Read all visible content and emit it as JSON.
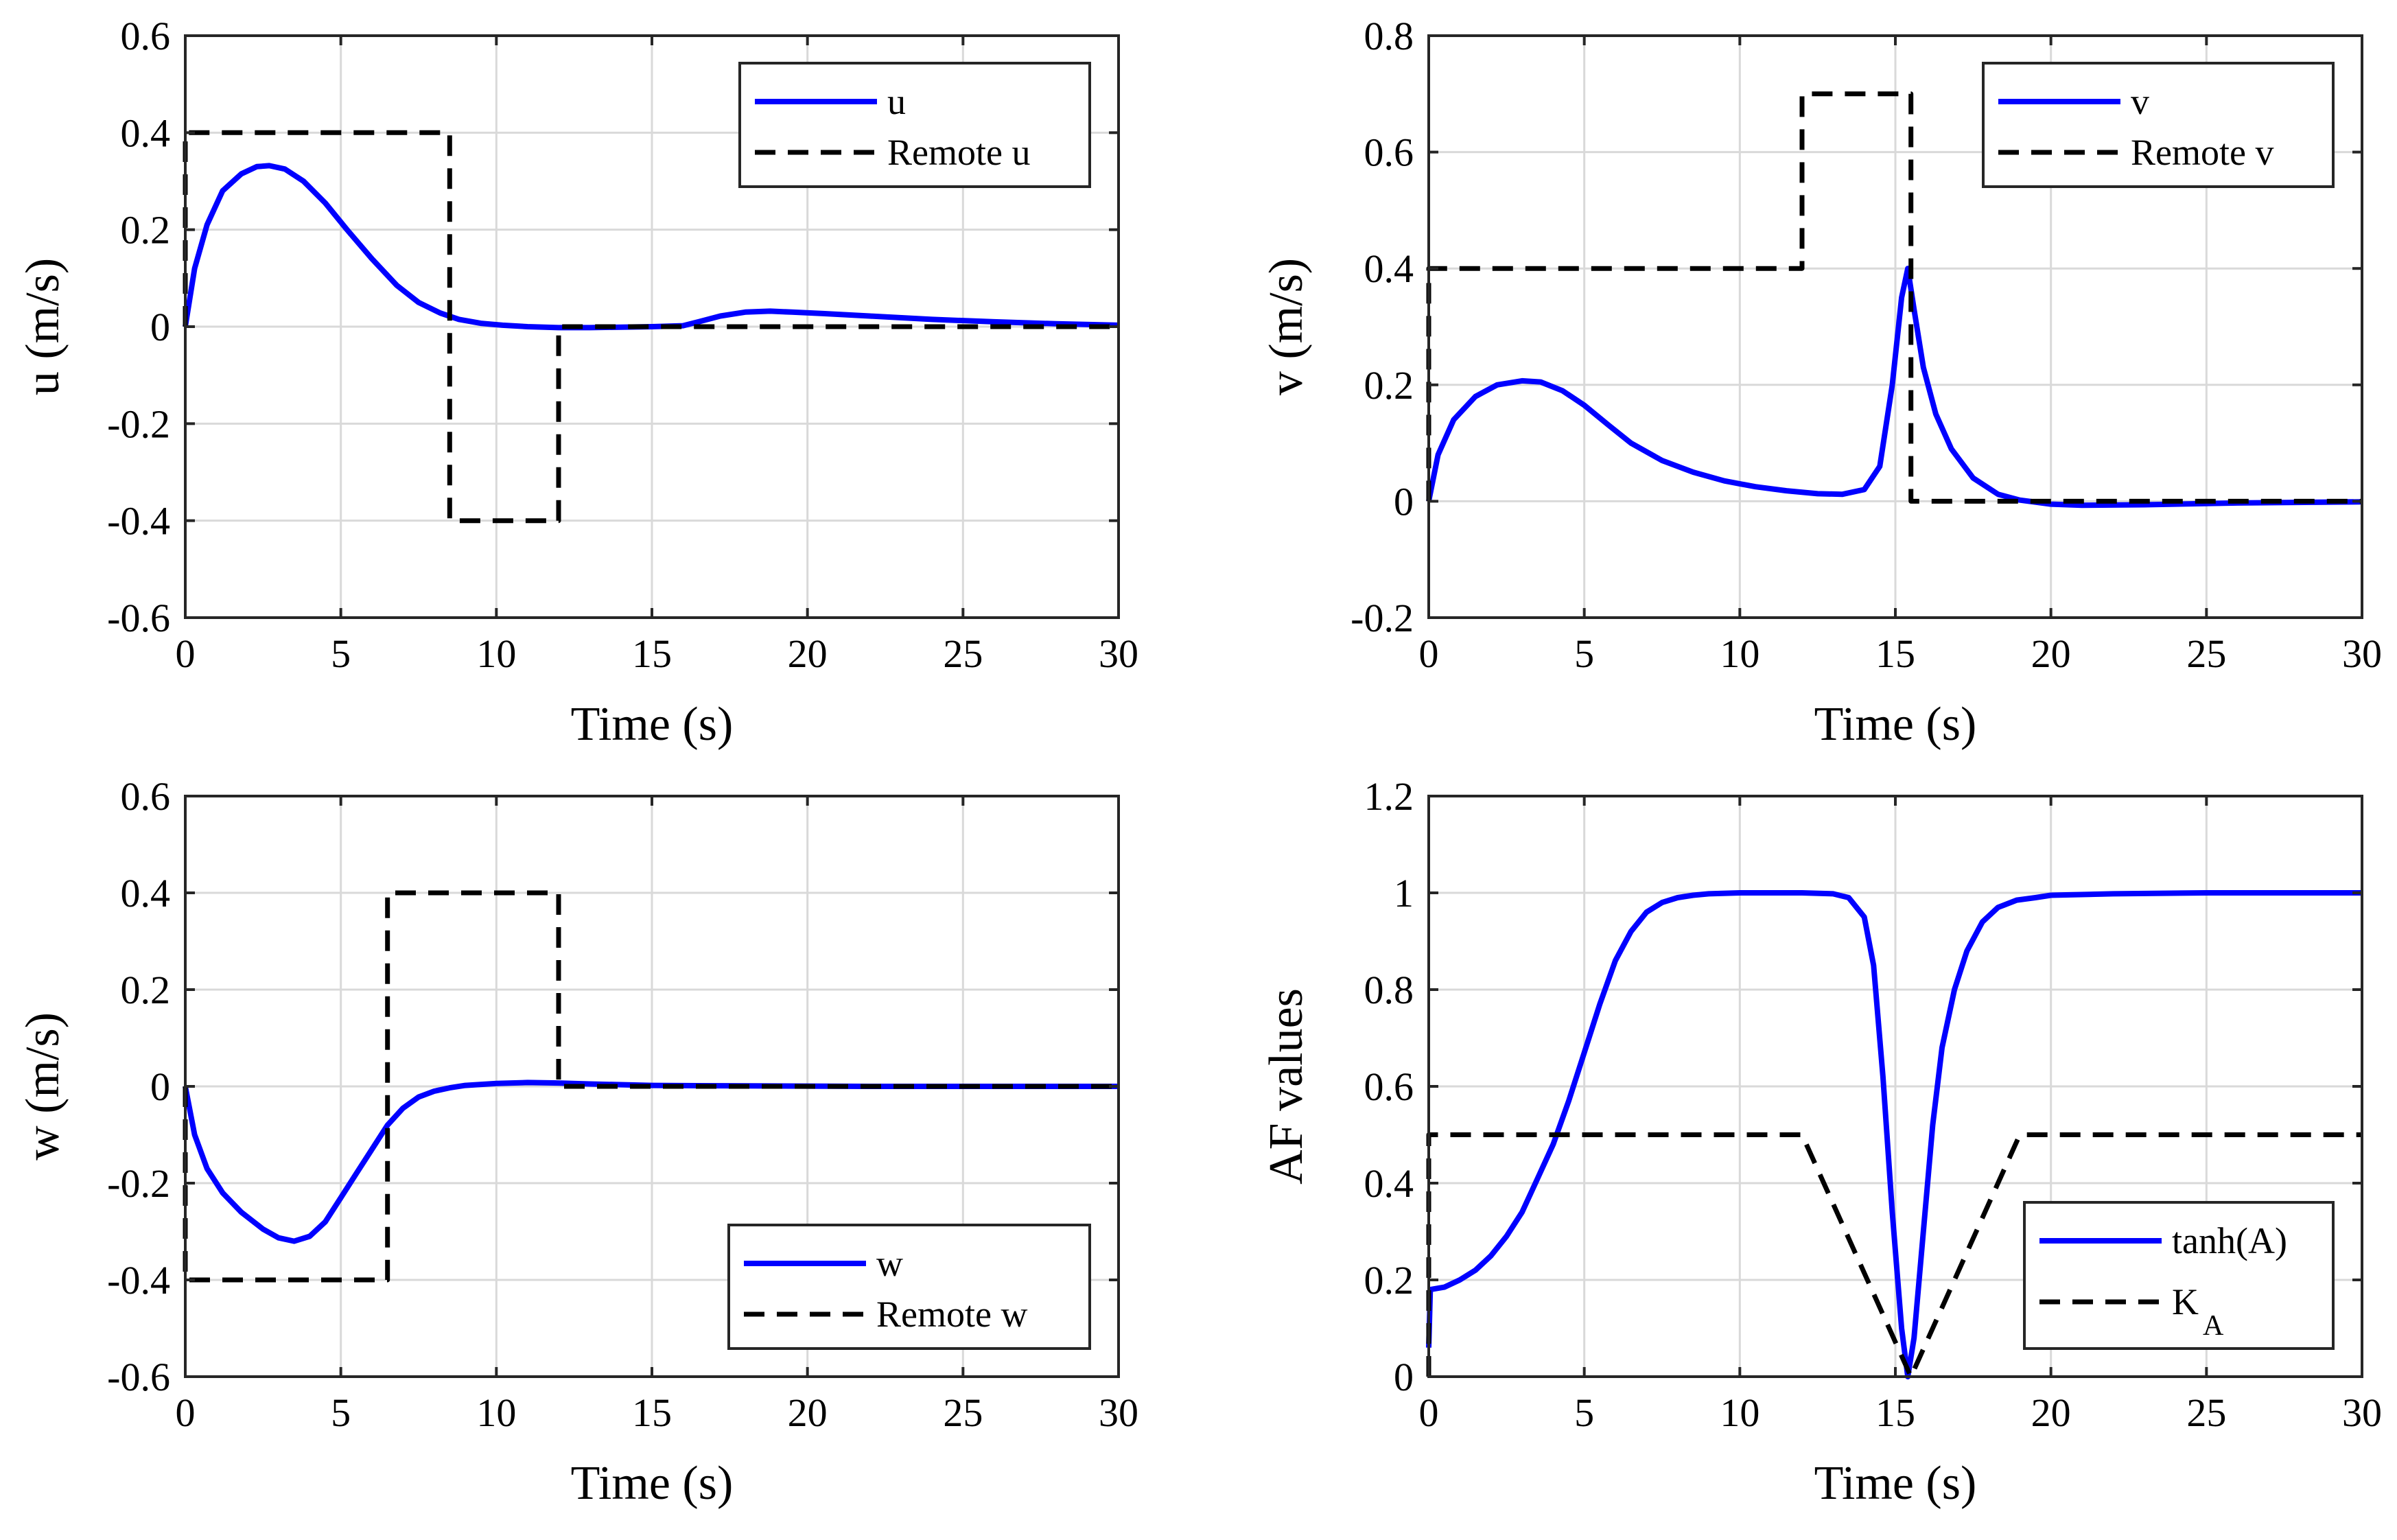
{
  "chart_data": [
    {
      "type": "line",
      "xlabel": "Time (s)",
      "ylabel": "u (m/s)",
      "xlim": [
        0,
        30
      ],
      "ylim": [
        -0.6,
        0.6
      ],
      "xticks": [
        0,
        5,
        10,
        15,
        20,
        25,
        30
      ],
      "xtick_labels": [
        "0",
        "5",
        "10",
        "15",
        "20",
        "25",
        "30"
      ],
      "yticks": [
        -0.6,
        -0.4,
        -0.2,
        0,
        0.2,
        0.4,
        0.6
      ],
      "ytick_labels": [
        "-0.6",
        "-0.4",
        "-0.2",
        "0",
        "0.2",
        "0.4",
        "0.6"
      ],
      "grid": true,
      "legend_position": "top-right",
      "series": [
        {
          "name": "u",
          "style": "solid",
          "color": "#0000ff",
          "x": [
            0,
            0.3,
            0.7,
            1.2,
            1.8,
            2.3,
            2.7,
            3.2,
            3.8,
            4.5,
            5.2,
            6,
            6.8,
            7.5,
            8.2,
            8.8,
            9.5,
            10.2,
            11,
            12,
            13,
            14,
            15,
            16,
            16.5,
            17.2,
            18,
            18.8,
            19.5,
            20.5,
            22,
            24,
            26,
            28,
            30
          ],
          "values": [
            0,
            0.12,
            0.21,
            0.28,
            0.315,
            0.33,
            0.332,
            0.325,
            0.3,
            0.255,
            0.2,
            0.14,
            0.085,
            0.05,
            0.028,
            0.015,
            0.007,
            0.003,
            0,
            -0.002,
            -0.002,
            -0.001,
            0,
            0.002,
            0.01,
            0.022,
            0.03,
            0.032,
            0.03,
            0.027,
            0.022,
            0.015,
            0.01,
            0.006,
            0.003
          ]
        },
        {
          "name": "Remote u",
          "style": "dashed",
          "color": "#000000",
          "x": [
            0,
            0,
            8.5,
            8.5,
            12,
            12,
            30
          ],
          "values": [
            0,
            0.4,
            0.4,
            -0.4,
            -0.4,
            0,
            0
          ]
        }
      ]
    },
    {
      "type": "line",
      "xlabel": "Time (s)",
      "ylabel": "v (m/s)",
      "xlim": [
        0,
        30
      ],
      "ylim": [
        -0.2,
        0.8
      ],
      "xticks": [
        0,
        5,
        10,
        15,
        20,
        25,
        30
      ],
      "xtick_labels": [
        "0",
        "5",
        "10",
        "15",
        "20",
        "25",
        "30"
      ],
      "yticks": [
        -0.2,
        0,
        0.2,
        0.4,
        0.6,
        0.8
      ],
      "ytick_labels": [
        "-0.2",
        "0",
        "0.2",
        "0.4",
        "0.6",
        "0.8"
      ],
      "grid": true,
      "legend_position": "top-right",
      "series": [
        {
          "name": "v",
          "style": "solid",
          "color": "#0000ff",
          "x": [
            0,
            0.3,
            0.8,
            1.5,
            2.2,
            3,
            3.6,
            4.3,
            5,
            5.8,
            6.5,
            7.5,
            8.5,
            9.5,
            10.5,
            11.5,
            12.5,
            13.3,
            14,
            14.5,
            14.9,
            15.2,
            15.4,
            15.6,
            15.9,
            16.3,
            16.8,
            17.5,
            18.3,
            19,
            20,
            21,
            23,
            26,
            30
          ],
          "values": [
            0,
            0.08,
            0.14,
            0.18,
            0.2,
            0.207,
            0.205,
            0.19,
            0.165,
            0.13,
            0.1,
            0.07,
            0.05,
            0.035,
            0.025,
            0.018,
            0.013,
            0.012,
            0.02,
            0.06,
            0.2,
            0.35,
            0.4,
            0.33,
            0.23,
            0.15,
            0.09,
            0.04,
            0.012,
            0.002,
            -0.005,
            -0.007,
            -0.006,
            -0.003,
            -0.001
          ]
        },
        {
          "name": "Remote v",
          "style": "dashed",
          "color": "#000000",
          "x": [
            0,
            0,
            12,
            12,
            15.5,
            15.5,
            30
          ],
          "values": [
            0,
            0.4,
            0.4,
            0.7,
            0.7,
            0,
            0
          ]
        }
      ]
    },
    {
      "type": "line",
      "xlabel": "Time (s)",
      "ylabel": "w (m/s)",
      "xlim": [
        0,
        30
      ],
      "ylim": [
        -0.6,
        0.6
      ],
      "xticks": [
        0,
        5,
        10,
        15,
        20,
        25,
        30
      ],
      "xtick_labels": [
        "0",
        "5",
        "10",
        "15",
        "20",
        "25",
        "30"
      ],
      "yticks": [
        -0.6,
        -0.4,
        -0.2,
        0,
        0.2,
        0.4,
        0.6
      ],
      "ytick_labels": [
        "-0.6",
        "-0.4",
        "-0.2",
        "0",
        "0.2",
        "0.4",
        "0.6"
      ],
      "grid": true,
      "legend_position": "bottom-right",
      "series": [
        {
          "name": "w",
          "style": "solid",
          "color": "#0000ff",
          "x": [
            0,
            0.3,
            0.7,
            1.2,
            1.8,
            2.5,
            3,
            3.5,
            4,
            4.5,
            5,
            5.5,
            6,
            6.5,
            7,
            7.5,
            8,
            8.5,
            9,
            10,
            11,
            12,
            13,
            15,
            18,
            22,
            26,
            30
          ],
          "values": [
            0,
            -0.1,
            -0.17,
            -0.22,
            -0.26,
            -0.295,
            -0.313,
            -0.32,
            -0.31,
            -0.28,
            -0.23,
            -0.18,
            -0.13,
            -0.08,
            -0.045,
            -0.022,
            -0.01,
            -0.003,
            0.002,
            0.006,
            0.008,
            0.007,
            0.005,
            0.002,
            0.001,
            0,
            0,
            0
          ]
        },
        {
          "name": "Remote w",
          "style": "dashed",
          "color": "#000000",
          "x": [
            0,
            0,
            6.5,
            6.5,
            12,
            12,
            30
          ],
          "values": [
            0,
            -0.4,
            -0.4,
            0.4,
            0.4,
            0,
            0
          ]
        }
      ]
    },
    {
      "type": "line",
      "xlabel": "Time (s)",
      "ylabel": "AF values",
      "xlim": [
        0,
        30
      ],
      "ylim": [
        0,
        1.2
      ],
      "xticks": [
        0,
        5,
        10,
        15,
        20,
        25,
        30
      ],
      "xtick_labels": [
        "0",
        "5",
        "10",
        "15",
        "20",
        "25",
        "30"
      ],
      "yticks": [
        0,
        0.2,
        0.4,
        0.6,
        0.8,
        1,
        1.2
      ],
      "ytick_labels": [
        "0",
        "0.2",
        "0.4",
        "0.6",
        "0.8",
        "1",
        "1.2"
      ],
      "grid": true,
      "legend_position": "bottom-right",
      "series": [
        {
          "name": "tanh(A)",
          "style": "solid",
          "color": "#0000ff",
          "x": [
            0,
            0.05,
            0.5,
            1,
            1.5,
            2,
            2.5,
            3,
            3.5,
            4,
            4.5,
            5,
            5.5,
            6,
            6.5,
            7,
            7.5,
            8,
            8.5,
            9,
            10,
            11,
            12,
            13,
            13.5,
            14,
            14.3,
            14.6,
            14.9,
            15.2,
            15.4,
            15.6,
            15.9,
            16.2,
            16.5,
            16.9,
            17.3,
            17.8,
            18.3,
            18.9,
            19.5,
            20,
            22,
            25,
            30
          ],
          "values": [
            0.06,
            0.18,
            0.185,
            0.2,
            0.22,
            0.25,
            0.29,
            0.34,
            0.41,
            0.48,
            0.57,
            0.67,
            0.77,
            0.86,
            0.92,
            0.96,
            0.98,
            0.99,
            0.995,
            0.998,
            1,
            1,
            1,
            0.998,
            0.99,
            0.95,
            0.85,
            0.62,
            0.34,
            0.1,
            0.0,
            0.08,
            0.3,
            0.52,
            0.68,
            0.8,
            0.88,
            0.94,
            0.97,
            0.985,
            0.99,
            0.995,
            0.998,
            1,
            1
          ]
        },
        {
          "name": "K_A",
          "style": "dashed",
          "color": "#000000",
          "x": [
            0,
            0,
            12,
            15.5,
            19,
            30
          ],
          "values": [
            0,
            0.5,
            0.5,
            0,
            0.5,
            0.5
          ]
        }
      ]
    }
  ],
  "legends": [
    {
      "labels": [
        "u",
        "Remote u"
      ]
    },
    {
      "labels": [
        "v",
        "Remote v"
      ]
    },
    {
      "labels": [
        "w",
        "Remote w"
      ]
    },
    {
      "labels": [
        "tanh(A)",
        "K"
      ],
      "subscript": "A"
    }
  ]
}
